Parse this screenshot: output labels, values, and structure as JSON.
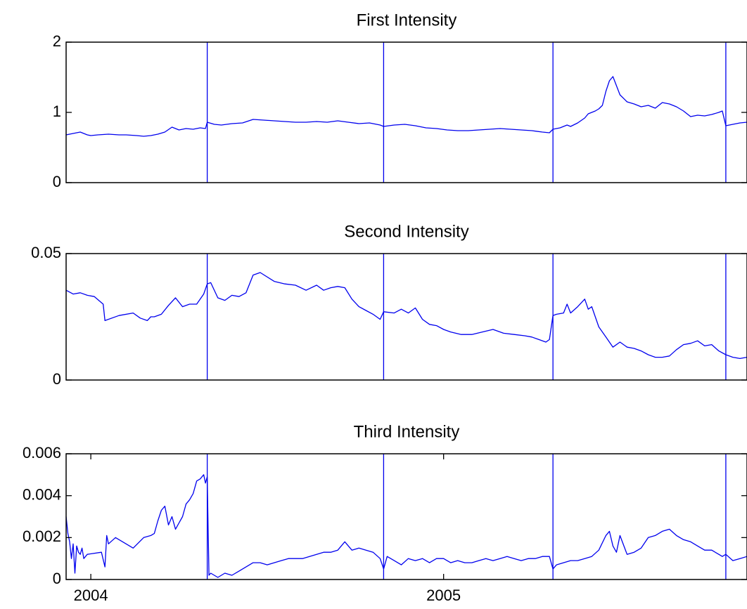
{
  "colors": {
    "line": "#0000ee",
    "axes": "#000000",
    "background": "#ffffff"
  },
  "chart_data": [
    {
      "type": "line",
      "title": "First Intensity",
      "ylim": [
        0,
        2
      ],
      "yticks": [
        "0",
        "1",
        "2"
      ],
      "xlim": [
        2003.93,
        2005.86
      ],
      "vlines": [
        2004.33,
        2004.83,
        2005.31,
        2005.8
      ],
      "series": [
        {
          "x": [
            2003.93,
            2003.95,
            2003.97,
            2003.99,
            2004.0,
            2004.02,
            2004.05,
            2004.08,
            2004.1,
            2004.13,
            2004.15,
            2004.17,
            2004.19,
            2004.21,
            2004.23,
            2004.25,
            2004.27,
            2004.29,
            2004.31,
            2004.325,
            2004.33,
            2004.35,
            2004.37,
            2004.4,
            2004.43,
            2004.46,
            2004.49,
            2004.52,
            2004.55,
            2004.58,
            2004.61,
            2004.64,
            2004.67,
            2004.7,
            2004.73,
            2004.76,
            2004.79,
            2004.82,
            2004.83,
            2004.86,
            2004.89,
            2004.92,
            2004.95,
            2004.98,
            2005.01,
            2005.04,
            2005.07,
            2005.1,
            2005.13,
            2005.16,
            2005.19,
            2005.22,
            2005.25,
            2005.28,
            2005.3,
            2005.31,
            2005.33,
            2005.35,
            2005.36,
            2005.38,
            2005.4,
            2005.41,
            2005.43,
            2005.44,
            2005.45,
            2005.46,
            2005.47,
            2005.48,
            2005.5,
            2005.52,
            2005.54,
            2005.56,
            2005.58,
            2005.6,
            2005.62,
            2005.64,
            2005.66,
            2005.68,
            2005.7,
            2005.72,
            2005.74,
            2005.76,
            2005.78,
            2005.79,
            2005.8,
            2005.82,
            2005.84,
            2005.86
          ],
          "y": [
            0.68,
            0.7,
            0.72,
            0.68,
            0.67,
            0.68,
            0.69,
            0.68,
            0.68,
            0.67,
            0.66,
            0.67,
            0.69,
            0.72,
            0.79,
            0.75,
            0.77,
            0.76,
            0.78,
            0.77,
            0.86,
            0.83,
            0.82,
            0.84,
            0.85,
            0.9,
            0.89,
            0.88,
            0.87,
            0.86,
            0.86,
            0.87,
            0.86,
            0.88,
            0.86,
            0.84,
            0.85,
            0.82,
            0.8,
            0.82,
            0.83,
            0.81,
            0.78,
            0.77,
            0.75,
            0.74,
            0.74,
            0.75,
            0.76,
            0.77,
            0.76,
            0.75,
            0.74,
            0.72,
            0.71,
            0.76,
            0.78,
            0.82,
            0.8,
            0.85,
            0.92,
            0.98,
            1.02,
            1.05,
            1.1,
            1.3,
            1.45,
            1.51,
            1.25,
            1.15,
            1.12,
            1.08,
            1.1,
            1.06,
            1.14,
            1.12,
            1.08,
            1.02,
            0.94,
            0.96,
            0.95,
            0.97,
            1.0,
            1.02,
            0.81,
            0.83,
            0.85,
            0.86
          ]
        }
      ]
    },
    {
      "type": "line",
      "title": "Second Intensity",
      "ylim": [
        0,
        0.05
      ],
      "yticks": [
        "0",
        "0.05"
      ],
      "xlim": [
        2003.93,
        2005.86
      ],
      "vlines": [
        2004.33,
        2004.83,
        2005.31,
        2005.8
      ],
      "series": [
        {
          "x": [
            2003.93,
            2003.95,
            2003.97,
            2003.99,
            2004.01,
            2004.035,
            2004.04,
            2004.08,
            2004.12,
            2004.14,
            2004.16,
            2004.17,
            2004.18,
            2004.2,
            2004.22,
            2004.24,
            2004.26,
            2004.28,
            2004.3,
            2004.32,
            2004.33,
            2004.34,
            2004.36,
            2004.38,
            2004.4,
            2004.42,
            2004.44,
            2004.46,
            2004.48,
            2004.52,
            2004.55,
            2004.58,
            2004.61,
            2004.64,
            2004.66,
            2004.68,
            2004.7,
            2004.72,
            2004.74,
            2004.76,
            2004.78,
            2004.8,
            2004.82,
            2004.83,
            2004.86,
            2004.88,
            2004.9,
            2004.92,
            2004.94,
            2004.96,
            2004.98,
            2005.0,
            2005.02,
            2005.05,
            2005.08,
            2005.11,
            2005.14,
            2005.17,
            2005.2,
            2005.23,
            2005.25,
            2005.27,
            2005.29,
            2005.3,
            2005.31,
            2005.32,
            2005.34,
            2005.35,
            2005.36,
            2005.38,
            2005.4,
            2005.41,
            2005.42,
            2005.43,
            2005.44,
            2005.46,
            2005.48,
            2005.5,
            2005.52,
            2005.54,
            2005.56,
            2005.58,
            2005.6,
            2005.62,
            2005.64,
            2005.66,
            2005.68,
            2005.7,
            2005.72,
            2005.74,
            2005.76,
            2005.78,
            2005.8,
            2005.82,
            2005.84,
            2005.86
          ],
          "y": [
            0.0355,
            0.034,
            0.0345,
            0.0335,
            0.033,
            0.03,
            0.0235,
            0.0255,
            0.0265,
            0.0245,
            0.0235,
            0.025,
            0.025,
            0.026,
            0.0295,
            0.0325,
            0.029,
            0.03,
            0.03,
            0.034,
            0.038,
            0.0385,
            0.0325,
            0.0315,
            0.0335,
            0.033,
            0.0345,
            0.0415,
            0.0425,
            0.039,
            0.038,
            0.0375,
            0.0355,
            0.0375,
            0.0355,
            0.0365,
            0.037,
            0.0365,
            0.032,
            0.029,
            0.0275,
            0.026,
            0.024,
            0.027,
            0.0265,
            0.028,
            0.0265,
            0.0285,
            0.024,
            0.022,
            0.0215,
            0.02,
            0.019,
            0.018,
            0.018,
            0.019,
            0.02,
            0.0185,
            0.018,
            0.0175,
            0.017,
            0.016,
            0.015,
            0.016,
            0.0255,
            0.026,
            0.0265,
            0.03,
            0.0265,
            0.029,
            0.032,
            0.028,
            0.029,
            0.025,
            0.021,
            0.017,
            0.013,
            0.015,
            0.013,
            0.0125,
            0.0115,
            0.01,
            0.009,
            0.009,
            0.0095,
            0.012,
            0.014,
            0.0145,
            0.0155,
            0.0135,
            0.014,
            0.0115,
            0.01,
            0.009,
            0.0085,
            0.009
          ]
        }
      ]
    },
    {
      "type": "line",
      "title": "Third Intensity",
      "ylim": [
        0,
        0.006
      ],
      "yticks": [
        "0",
        "0.002",
        "0.004",
        "0.006"
      ],
      "xlim": [
        2003.93,
        2005.86
      ],
      "xticks": [
        {
          "value": 2004,
          "label": "2004"
        },
        {
          "value": 2005,
          "label": "2005"
        }
      ],
      "vlines": [
        2004.33,
        2004.83,
        2005.31,
        2005.8
      ],
      "series": [
        {
          "x": [
            2003.93,
            2003.935,
            2003.94,
            2003.945,
            2003.95,
            2003.955,
            2003.96,
            2003.965,
            2003.97,
            2003.975,
            2003.98,
            2003.99,
            2004.03,
            2004.04,
            2004.045,
            2004.05,
            2004.07,
            2004.1,
            2004.12,
            2004.15,
            2004.17,
            2004.18,
            2004.19,
            2004.2,
            2004.21,
            2004.22,
            2004.23,
            2004.24,
            2004.26,
            2004.27,
            2004.28,
            2004.29,
            2004.3,
            2004.31,
            2004.32,
            2004.325,
            2004.33,
            2004.335,
            2004.34,
            2004.36,
            2004.38,
            2004.4,
            2004.42,
            2004.44,
            2004.46,
            2004.48,
            2004.5,
            2004.52,
            2004.54,
            2004.56,
            2004.58,
            2004.6,
            2004.62,
            2004.64,
            2004.66,
            2004.68,
            2004.7,
            2004.72,
            2004.74,
            2004.76,
            2004.78,
            2004.8,
            2004.82,
            2004.83,
            2004.84,
            2004.86,
            2004.88,
            2004.9,
            2004.92,
            2004.94,
            2004.96,
            2004.98,
            2005.0,
            2005.02,
            2005.04,
            2005.06,
            2005.08,
            2005.1,
            2005.12,
            2005.14,
            2005.16,
            2005.18,
            2005.2,
            2005.22,
            2005.24,
            2005.26,
            2005.28,
            2005.3,
            2005.31,
            2005.32,
            2005.34,
            2005.36,
            2005.38,
            2005.4,
            2005.42,
            2005.44,
            2005.46,
            2005.47,
            2005.48,
            2005.49,
            2005.5,
            2005.52,
            2005.54,
            2005.56,
            2005.58,
            2005.6,
            2005.62,
            2005.64,
            2005.66,
            2005.68,
            2005.7,
            2005.72,
            2005.74,
            2005.76,
            2005.78,
            2005.79,
            2005.8,
            2005.82,
            2005.84,
            2005.86
          ],
          "y": [
            0.003,
            0.0022,
            0.0018,
            0.001,
            0.0017,
            0.0003,
            0.0016,
            0.0013,
            0.0012,
            0.0015,
            0.001,
            0.0012,
            0.0013,
            0.0006,
            0.0021,
            0.0017,
            0.002,
            0.0017,
            0.0015,
            0.002,
            0.0021,
            0.0022,
            0.0028,
            0.0033,
            0.0035,
            0.0026,
            0.003,
            0.0024,
            0.003,
            0.0036,
            0.0038,
            0.0041,
            0.0047,
            0.0048,
            0.005,
            0.0046,
            0.0049,
            0.0002,
            0.0003,
            0.0001,
            0.0003,
            0.0002,
            0.0004,
            0.0006,
            0.0008,
            0.0008,
            0.0007,
            0.0008,
            0.0009,
            0.001,
            0.001,
            0.001,
            0.0011,
            0.0012,
            0.0013,
            0.0013,
            0.0014,
            0.0018,
            0.0014,
            0.0015,
            0.0014,
            0.0013,
            0.001,
            0.0005,
            0.0011,
            0.0009,
            0.0007,
            0.001,
            0.0009,
            0.001,
            0.0008,
            0.001,
            0.001,
            0.0008,
            0.0009,
            0.0008,
            0.0008,
            0.0009,
            0.001,
            0.0009,
            0.001,
            0.0011,
            0.001,
            0.0009,
            0.001,
            0.001,
            0.0011,
            0.0011,
            0.0005,
            0.0007,
            0.0008,
            0.0009,
            0.0009,
            0.001,
            0.0011,
            0.0014,
            0.0021,
            0.0023,
            0.0016,
            0.0013,
            0.0021,
            0.0012,
            0.0013,
            0.0015,
            0.002,
            0.0021,
            0.0023,
            0.0024,
            0.0021,
            0.0019,
            0.0018,
            0.0016,
            0.0014,
            0.0014,
            0.0012,
            0.0011,
            0.0012,
            0.0009,
            0.001,
            0.0011
          ]
        }
      ]
    }
  ]
}
